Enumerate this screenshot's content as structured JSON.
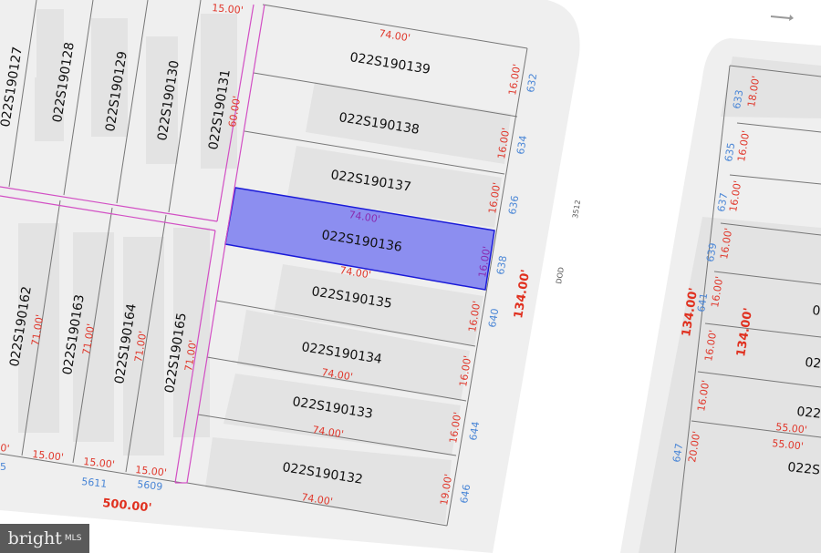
{
  "map": {
    "selected_parcel": "022S190136",
    "highlight_color": "#8c8ef0",
    "highlight_border": "#1a1ad8",
    "parcels_right_column": [
      {
        "id": "022S190139",
        "depth": "74.00'",
        "width": "16.00'",
        "address": "632"
      },
      {
        "id": "022S190138",
        "width": "16.00'",
        "address": "634"
      },
      {
        "id": "022S190137",
        "width": "16.00'",
        "address": "636"
      },
      {
        "id": "022S190136",
        "depth": "74.00'",
        "width": "16.00'",
        "address": "638"
      },
      {
        "id": "022S190135",
        "depth": "74.00'",
        "width": "16.00'",
        "address": "640"
      },
      {
        "id": "022S190134",
        "width": "16.00'"
      },
      {
        "id": "022S190133",
        "depth": "74.00'",
        "width": "16.00'",
        "address": "644"
      },
      {
        "id": "022S190132",
        "depth": "74.00'",
        "width": "19.00'",
        "address": "646"
      }
    ],
    "parcels_top_row": [
      "022S190127",
      "022S190128",
      "022S190129",
      "022S190130",
      "022S190131"
    ],
    "top_row_dims": {
      "width": "15.00'",
      "depth": "60.00'"
    },
    "parcels_bottom_row": [
      {
        "id": "022S190162",
        "depth": "71.00'"
      },
      {
        "id": "022S190163",
        "depth": "71.00'",
        "width": "15.00'"
      },
      {
        "id": "022S190164",
        "depth": "71.00'",
        "width": "15.00'",
        "address": "5611"
      },
      {
        "id": "022S190165",
        "depth": "71.00'",
        "width": "15.00'",
        "address": "5609"
      }
    ],
    "block_dims": {
      "frontage": "500.00'",
      "side": "134.00'"
    },
    "street_labels": {
      "street_code": "3512",
      "street_name": "DOD"
    },
    "east_block": {
      "addresses": [
        "633",
        "635",
        "637",
        "639",
        "641",
        "647"
      ],
      "widths": [
        "18.00'",
        "16.00'",
        "16.00'",
        "16.00'",
        "16.00'",
        "16.00'",
        "16.00'",
        "20.00'"
      ],
      "side_left": "134.00'",
      "side_right": "134.00'",
      "depths": [
        "55.00'",
        "55.00'"
      ],
      "partial_ids": [
        "0",
        "02",
        "022",
        "022S"
      ]
    },
    "misc_labels": {
      "left_address": "5",
      "left_width": "0'",
      "top_dim": "15.00'"
    }
  },
  "logo": {
    "brand": "bright",
    "suffix": "MLS"
  }
}
